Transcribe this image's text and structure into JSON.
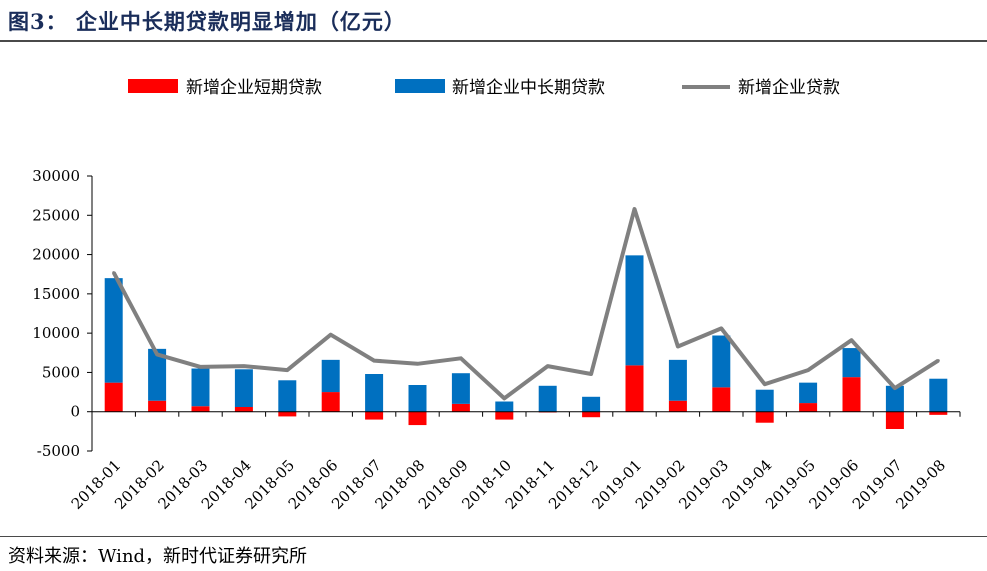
{
  "header": {
    "title": "图3：  企业中长期贷款明显增加（亿元）"
  },
  "footer": {
    "source": "资料来源：Wind，新时代证券研究所"
  },
  "colors": {
    "short_term": "#ff0000",
    "long_term": "#0070c0",
    "total": "#808080",
    "title": "#1a2d5a"
  },
  "chart_data": {
    "type": "bar",
    "stacked": true,
    "categories": [
      "2018-01",
      "2018-02",
      "2018-03",
      "2018-04",
      "2018-05",
      "2018-06",
      "2018-07",
      "2018-08",
      "2018-09",
      "2018-10",
      "2018-11",
      "2018-12",
      "2019-01",
      "2019-02",
      "2019-03",
      "2019-04",
      "2019-05",
      "2019-06",
      "2019-07",
      "2019-08"
    ],
    "series": [
      {
        "name": "新增企业短期贷款",
        "kind": "bar",
        "values": [
          3700,
          1400,
          700,
          600,
          -600,
          2500,
          -1000,
          -1700,
          1000,
          -1000,
          -100,
          -700,
          5900,
          1400,
          3100,
          -1400,
          1100,
          4400,
          -2200,
          -400
        ]
      },
      {
        "name": "新增企业中长期贷款",
        "kind": "bar",
        "values": [
          13300,
          6600,
          4800,
          4800,
          4000,
          4100,
          4800,
          3400,
          3900,
          1300,
          3300,
          1900,
          14000,
          5200,
          6600,
          2800,
          2600,
          3700,
          3300,
          4200
        ]
      },
      {
        "name": "新增企业贷款",
        "kind": "line",
        "values": [
          17700,
          7300,
          5700,
          5800,
          5300,
          9800,
          6500,
          6100,
          6800,
          1700,
          5800,
          4800,
          25800,
          8300,
          10600,
          3500,
          5300,
          9100,
          3000,
          6500
        ]
      }
    ],
    "ylim": [
      -5000,
      30000
    ],
    "yticks": [
      -5000,
      0,
      5000,
      10000,
      15000,
      20000,
      25000,
      30000
    ],
    "legend_position": "top"
  }
}
